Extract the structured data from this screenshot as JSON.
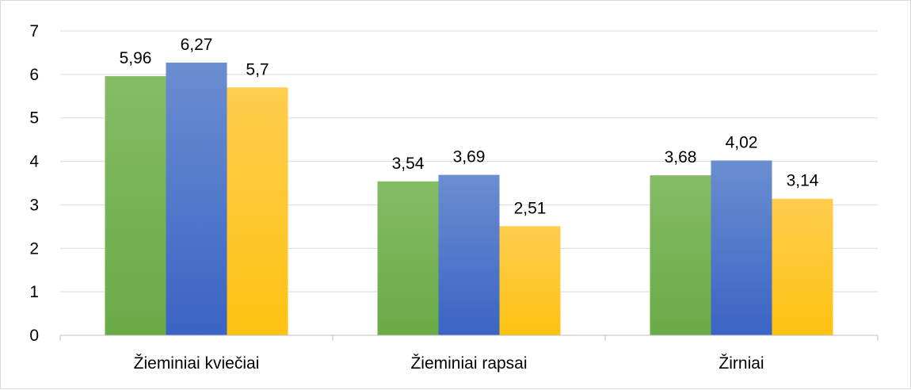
{
  "chart_data": {
    "type": "bar",
    "categories": [
      "Žieminiai kviečiai",
      "Žieminiai rapsai",
      "Žirniai"
    ],
    "series": [
      {
        "values": [
          5.96,
          3.54,
          3.68
        ],
        "labels": [
          "5,96",
          "3,54",
          "3,68"
        ],
        "color": "#6aab46",
        "color_light": "#85bb65"
      },
      {
        "values": [
          6.27,
          3.69,
          4.02
        ],
        "labels": [
          "6,27",
          "3,69",
          "4,02"
        ],
        "color": "#3a64c4",
        "color_light": "#6a8ed1"
      },
      {
        "values": [
          5.7,
          2.51,
          3.14
        ],
        "labels": [
          "5,7",
          "2,51",
          "3,14"
        ],
        "color": "#fec211",
        "color_light": "#ffcd4f"
      }
    ],
    "ylim": [
      0,
      7
    ],
    "yticks": [
      "0",
      "1",
      "2",
      "3",
      "4",
      "5",
      "6",
      "7"
    ],
    "grid": true,
    "gridline_color": "#d9d9d9",
    "xlabel": "",
    "ylabel": "",
    "title": ""
  }
}
